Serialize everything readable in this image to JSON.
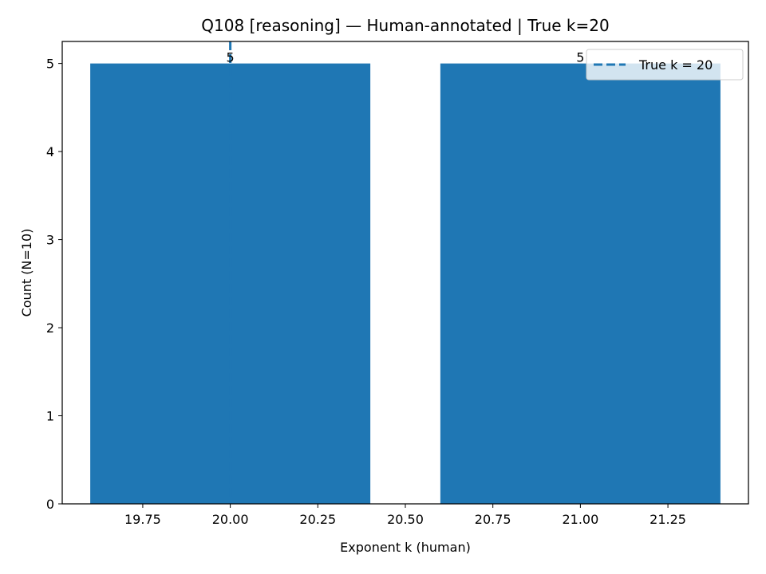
{
  "chart_data": {
    "type": "bar",
    "title": "Q108 [reasoning] — Human-annotated | True k=20",
    "xlabel": "Exponent k (human)",
    "ylabel": "Count (N=10)",
    "bars": [
      {
        "x": 20,
        "value": 5,
        "label": "5"
      },
      {
        "x": 21,
        "value": 5,
        "label": "5"
      }
    ],
    "bar_width": 0.8,
    "xlim": [
      19.52,
      21.48
    ],
    "ylim": [
      0,
      5.25
    ],
    "x_ticks": [
      19.75,
      20.0,
      20.25,
      20.5,
      20.75,
      21.0,
      21.25
    ],
    "x_tick_labels": [
      "19.75",
      "20.00",
      "20.25",
      "20.50",
      "20.75",
      "21.00",
      "21.25"
    ],
    "y_ticks": [
      0,
      1,
      2,
      3,
      4,
      5
    ],
    "y_tick_labels": [
      "0",
      "1",
      "2",
      "3",
      "4",
      "5"
    ],
    "reference_line": {
      "x": 20,
      "style": "dashed"
    },
    "legend": {
      "placement": "top-right",
      "entries": [
        "True k = 20"
      ]
    },
    "grid": false,
    "colors": {
      "bar": "#1f77b4",
      "reference_line": "#1f77b4"
    }
  }
}
